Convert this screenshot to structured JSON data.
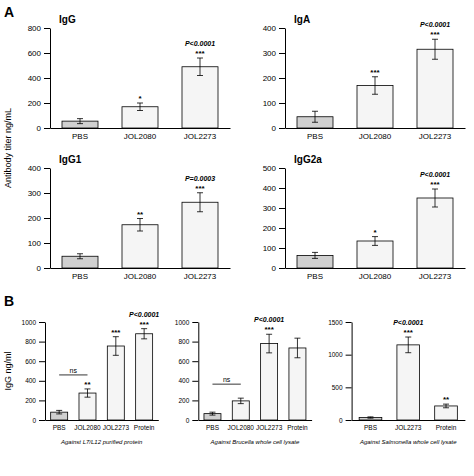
{
  "chart_data": [
    {
      "type": "bar",
      "title": "IgG",
      "panel_label": "A",
      "ylabel": "Antibody titer ng/mL",
      "categories": [
        "PBS",
        "JOL2080",
        "JOL2273"
      ],
      "values": [
        55,
        170,
        490
      ],
      "errors": [
        20,
        30,
        70
      ],
      "colors": [
        "#d0d0d0",
        "#f5f5f5",
        "#f5f5f5"
      ],
      "ylim": [
        0,
        800
      ],
      "yticks": [
        0,
        200,
        400,
        600,
        800
      ],
      "stars": [
        null,
        "*",
        "***"
      ],
      "annotations": [
        {
          "text": "P<0.0001",
          "category": "JOL2273"
        }
      ]
    },
    {
      "type": "bar",
      "title": "IgA",
      "categories": [
        "PBS",
        "JOL2080",
        "JOL2273"
      ],
      "values": [
        45,
        170,
        315
      ],
      "errors": [
        22,
        35,
        40
      ],
      "colors": [
        "#d0d0d0",
        "#f5f5f5",
        "#f5f5f5"
      ],
      "ylim": [
        0,
        400
      ],
      "yticks": [
        0,
        100,
        200,
        300,
        400
      ],
      "stars": [
        null,
        "***",
        "***"
      ],
      "annotations": [
        {
          "text": "P<0.0001",
          "category": "JOL2273"
        }
      ]
    },
    {
      "type": "bar",
      "title": "IgG1",
      "categories": [
        "PBS",
        "JOL2080",
        "JOL2273"
      ],
      "values": [
        47,
        173,
        263
      ],
      "errors": [
        10,
        25,
        38
      ],
      "colors": [
        "#d0d0d0",
        "#f5f5f5",
        "#f5f5f5"
      ],
      "ylim": [
        0,
        400
      ],
      "yticks": [
        0,
        100,
        200,
        300,
        400
      ],
      "stars": [
        null,
        "**",
        "***"
      ],
      "annotations": [
        {
          "text": "P=0.0003",
          "category": "JOL2273"
        }
      ]
    },
    {
      "type": "bar",
      "title": "IgG2a",
      "categories": [
        "PBS",
        "JOL2080",
        "JOL2273"
      ],
      "values": [
        63,
        135,
        350
      ],
      "errors": [
        15,
        22,
        45
      ],
      "colors": [
        "#d0d0d0",
        "#f5f5f5",
        "#f5f5f5"
      ],
      "ylim": [
        0,
        500
      ],
      "yticks": [
        0,
        100,
        200,
        300,
        400,
        500
      ],
      "stars": [
        null,
        "*",
        "***"
      ],
      "annotations": [
        {
          "text": "P<0.0001",
          "category": "JOL2273"
        }
      ]
    },
    {
      "type": "bar",
      "panel_label": "B",
      "ylabel": "IgG ng/ml",
      "xlabel": "Against L7/L12 purified protein",
      "categories": [
        "PBS",
        "JOL2080",
        "JOL2273",
        "Protein"
      ],
      "values": [
        80,
        275,
        755,
        880
      ],
      "errors": [
        18,
        42,
        95,
        52
      ],
      "colors": [
        "#d0d0d0",
        "#f5f5f5",
        "#f5f5f5",
        "#f5f5f5"
      ],
      "ylim": [
        0,
        1000
      ],
      "yticks": [
        0,
        200,
        400,
        600,
        800,
        1000
      ],
      "stars": [
        null,
        "**",
        "***",
        "***"
      ],
      "annotations": [
        {
          "text": "P<0.0001",
          "category": "Protein"
        },
        {
          "text": "ns",
          "from": "PBS",
          "to": "JOL2080"
        }
      ]
    },
    {
      "type": "bar",
      "xlabel": "Against Brucella whole cell lysate",
      "categories": [
        "PBS",
        "JOL2080",
        "JOL2273",
        "Protein"
      ],
      "values": [
        65,
        195,
        780,
        735
      ],
      "errors": [
        15,
        28,
        95,
        100
      ],
      "colors": [
        "#d0d0d0",
        "#f5f5f5",
        "#f5f5f5",
        "#f5f5f5"
      ],
      "ylim": [
        0,
        1000
      ],
      "yticks": [
        0,
        200,
        400,
        600,
        800,
        1000
      ],
      "stars": [
        null,
        null,
        "***",
        null
      ],
      "annotations": [
        {
          "text": "P<0.0001",
          "category": "JOL2273"
        },
        {
          "text": "ns",
          "from": "PBS",
          "to": "JOL2080"
        }
      ]
    },
    {
      "type": "bar",
      "xlabel": "Against Salmonella whole cell lysate",
      "categories": [
        "PBS",
        "JOL2273",
        "Protein"
      ],
      "values": [
        38,
        1150,
        215
      ],
      "errors": [
        10,
        120,
        28
      ],
      "colors": [
        "#d0d0d0",
        "#f5f5f5",
        "#f5f5f5"
      ],
      "ylim": [
        0,
        1500
      ],
      "yticks": [
        0,
        500,
        1000,
        1500
      ],
      "stars": [
        null,
        "***",
        "**"
      ],
      "annotations": [
        {
          "text": "P<0.0001",
          "category": "JOL2273"
        }
      ]
    }
  ]
}
